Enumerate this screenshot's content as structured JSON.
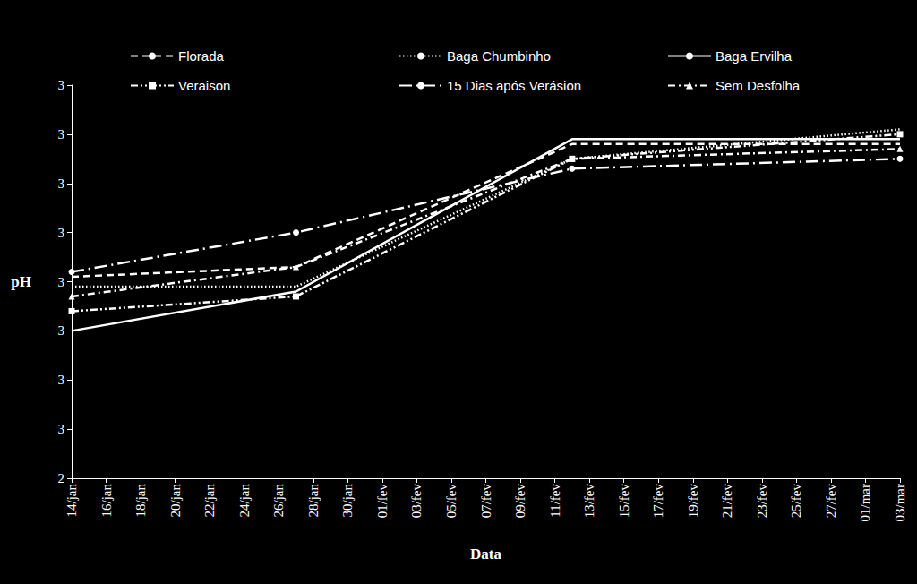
{
  "chart_data": {
    "type": "line",
    "x_label": "Data",
    "y_label": "pH",
    "categories": [
      "14/jan",
      null,
      "16/jan",
      null,
      "18/jan",
      null,
      "20/jan",
      null,
      "22/jan",
      null,
      "24/jan",
      null,
      "26/jan",
      null,
      "28/jan",
      null,
      "30/jan",
      null,
      "01/fev",
      null,
      "03/fev",
      null,
      "05/fev",
      null,
      "07/fev",
      null,
      "09/fev",
      null,
      "11/fev",
      null,
      "13/fev",
      null,
      "15/fev",
      null,
      "17/fev",
      null,
      "19/fev",
      null,
      "21/fev",
      null,
      "23/fev",
      null,
      "25/fev",
      null,
      "27/fev",
      null,
      "01/mar",
      null,
      "03/mar"
    ],
    "series": [
      {
        "name": "Florada",
        "color": "#ffffff",
        "line_style": "dashed",
        "marker": "none",
        "values": [
          2.81,
          null,
          null,
          null,
          null,
          null,
          null,
          null,
          null,
          null,
          null,
          null,
          null,
          2.83,
          null,
          null,
          null,
          null,
          null,
          null,
          null,
          null,
          null,
          null,
          null,
          null,
          null,
          null,
          null,
          3.08,
          null,
          null,
          null,
          null,
          null,
          null,
          null,
          null,
          null,
          null,
          null,
          null,
          null,
          null,
          null,
          null,
          null,
          null,
          3.08
        ]
      },
      {
        "name": "Baga Chumbinho",
        "color": "#ffffff",
        "line_style": "dotted",
        "marker": "none",
        "values": [
          2.79,
          null,
          null,
          null,
          null,
          null,
          null,
          null,
          null,
          null,
          null,
          null,
          null,
          2.79,
          null,
          null,
          null,
          null,
          null,
          null,
          null,
          null,
          null,
          null,
          null,
          null,
          null,
          null,
          null,
          3.05,
          null,
          null,
          null,
          null,
          null,
          null,
          null,
          null,
          null,
          null,
          null,
          null,
          null,
          null,
          null,
          null,
          null,
          null,
          3.11
        ]
      },
      {
        "name": "Baga Ervilha",
        "color": "#ffffff",
        "line_style": "solid",
        "marker": "none",
        "values": [
          2.7,
          null,
          null,
          null,
          null,
          null,
          null,
          null,
          null,
          null,
          null,
          null,
          null,
          2.78,
          null,
          null,
          null,
          null,
          null,
          null,
          null,
          null,
          null,
          null,
          null,
          null,
          null,
          null,
          null,
          3.09,
          null,
          null,
          null,
          null,
          null,
          null,
          null,
          null,
          null,
          null,
          null,
          null,
          null,
          null,
          null,
          null,
          null,
          null,
          3.09
        ]
      },
      {
        "name": "Veraison",
        "color": "#ffffff",
        "line_style": "dashdotdot",
        "marker": "square",
        "values": [
          2.74,
          null,
          null,
          null,
          null,
          null,
          null,
          null,
          null,
          null,
          null,
          null,
          null,
          2.77,
          null,
          null,
          null,
          null,
          null,
          null,
          null,
          null,
          null,
          null,
          null,
          null,
          null,
          null,
          null,
          3.05,
          null,
          null,
          null,
          null,
          null,
          null,
          null,
          null,
          null,
          null,
          null,
          null,
          null,
          null,
          null,
          null,
          null,
          null,
          3.1
        ]
      },
      {
        "name": "15 Dias após Verásion",
        "color": "#ffffff",
        "line_style": "longdashdot",
        "marker": "circle",
        "values": [
          2.82,
          null,
          null,
          null,
          null,
          null,
          null,
          null,
          null,
          null,
          null,
          null,
          null,
          2.9,
          null,
          null,
          null,
          null,
          null,
          null,
          null,
          null,
          null,
          null,
          null,
          null,
          null,
          null,
          null,
          3.03,
          null,
          null,
          null,
          null,
          null,
          null,
          null,
          null,
          null,
          null,
          null,
          null,
          null,
          null,
          null,
          null,
          null,
          null,
          3.05
        ]
      },
      {
        "name": "Sem Desfolha",
        "color": "#ffffff",
        "line_style": "dashdot",
        "marker": "triangle",
        "values": [
          2.77,
          null,
          null,
          null,
          null,
          null,
          null,
          null,
          null,
          null,
          null,
          null,
          null,
          2.83,
          null,
          null,
          null,
          null,
          null,
          null,
          null,
          null,
          null,
          null,
          null,
          null,
          null,
          null,
          null,
          3.05,
          null,
          null,
          null,
          null,
          null,
          null,
          null,
          null,
          null,
          null,
          null,
          null,
          null,
          null,
          null,
          null,
          null,
          null,
          3.07
        ]
      }
    ],
    "ylim": [
      2.4,
      3.2
    ],
    "yticks": [
      {
        "value": 2.4,
        "label": "2"
      },
      {
        "value": 2.5,
        "label": "3"
      },
      {
        "value": 2.6,
        "label": "3"
      },
      {
        "value": 2.7,
        "label": "3"
      },
      {
        "value": 2.8,
        "label": "3"
      },
      {
        "value": 2.9,
        "label": "3"
      },
      {
        "value": 3.0,
        "label": "3"
      },
      {
        "value": 3.1,
        "label": "3"
      },
      {
        "value": 3.2,
        "label": "3"
      }
    ],
    "grid": false,
    "legend": "top"
  }
}
